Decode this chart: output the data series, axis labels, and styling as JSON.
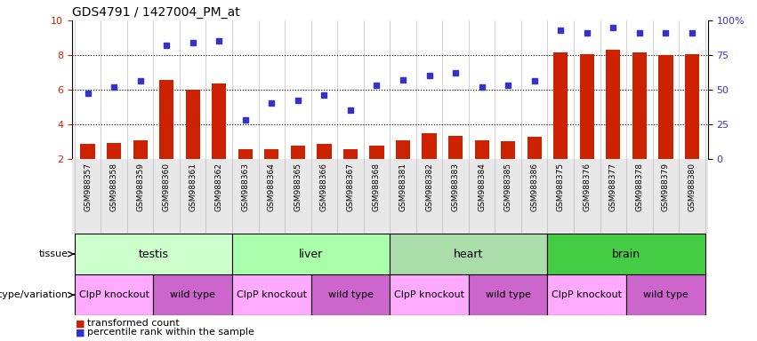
{
  "title": "GDS4791 / 1427004_PM_at",
  "samples": [
    "GSM988357",
    "GSM988358",
    "GSM988359",
    "GSM988360",
    "GSM988361",
    "GSM988362",
    "GSM988363",
    "GSM988364",
    "GSM988365",
    "GSM988366",
    "GSM988367",
    "GSM988368",
    "GSM988381",
    "GSM988382",
    "GSM988383",
    "GSM988384",
    "GSM988385",
    "GSM988386",
    "GSM988375",
    "GSM988376",
    "GSM988377",
    "GSM988378",
    "GSM988379",
    "GSM988380"
  ],
  "bar_values": [
    2.85,
    2.9,
    3.05,
    6.55,
    6.0,
    6.35,
    2.55,
    2.55,
    2.75,
    2.85,
    2.55,
    2.75,
    3.05,
    3.45,
    3.3,
    3.05,
    3.0,
    3.25,
    8.15,
    8.05,
    8.3,
    8.15,
    8.0,
    8.05
  ],
  "percentile_values": [
    47,
    52,
    56,
    82,
    84,
    85,
    28,
    40,
    42,
    46,
    35,
    53,
    57,
    60,
    62,
    52,
    53,
    56,
    93,
    91,
    95,
    91,
    91,
    91
  ],
  "y_min": 2,
  "y_max": 10,
  "yticks_left": [
    2,
    4,
    6,
    8,
    10
  ],
  "yticks_right": [
    0,
    25,
    50,
    75,
    100
  ],
  "bar_color": "#cc2200",
  "dot_color": "#3333cc",
  "tissue_groups": [
    {
      "label": "testis",
      "start": 0,
      "end": 5,
      "color": "#ccffcc"
    },
    {
      "label": "liver",
      "start": 6,
      "end": 11,
      "color": "#aaffaa"
    },
    {
      "label": "heart",
      "start": 12,
      "end": 17,
      "color": "#aaddaa"
    },
    {
      "label": "brain",
      "start": 18,
      "end": 23,
      "color": "#44cc44"
    }
  ],
  "genotype_groups": [
    {
      "label": "ClpP knockout",
      "start": 0,
      "end": 2,
      "color": "#ffaaff"
    },
    {
      "label": "wild type",
      "start": 3,
      "end": 5,
      "color": "#cc66cc"
    },
    {
      "label": "ClpP knockout",
      "start": 6,
      "end": 8,
      "color": "#ffaaff"
    },
    {
      "label": "wild type",
      "start": 9,
      "end": 11,
      "color": "#cc66cc"
    },
    {
      "label": "ClpP knockout",
      "start": 12,
      "end": 14,
      "color": "#ffaaff"
    },
    {
      "label": "wild type",
      "start": 15,
      "end": 17,
      "color": "#cc66cc"
    },
    {
      "label": "ClpP knockout",
      "start": 18,
      "end": 20,
      "color": "#ffaaff"
    },
    {
      "label": "wild type",
      "start": 21,
      "end": 23,
      "color": "#cc66cc"
    }
  ],
  "tissue_label": "tissue",
  "genotype_label": "genotype/variation",
  "title_fontsize": 10,
  "tick_fontsize": 6.5,
  "label_fontsize": 8,
  "annotation_fontsize": 9,
  "geno_fontsize": 8
}
